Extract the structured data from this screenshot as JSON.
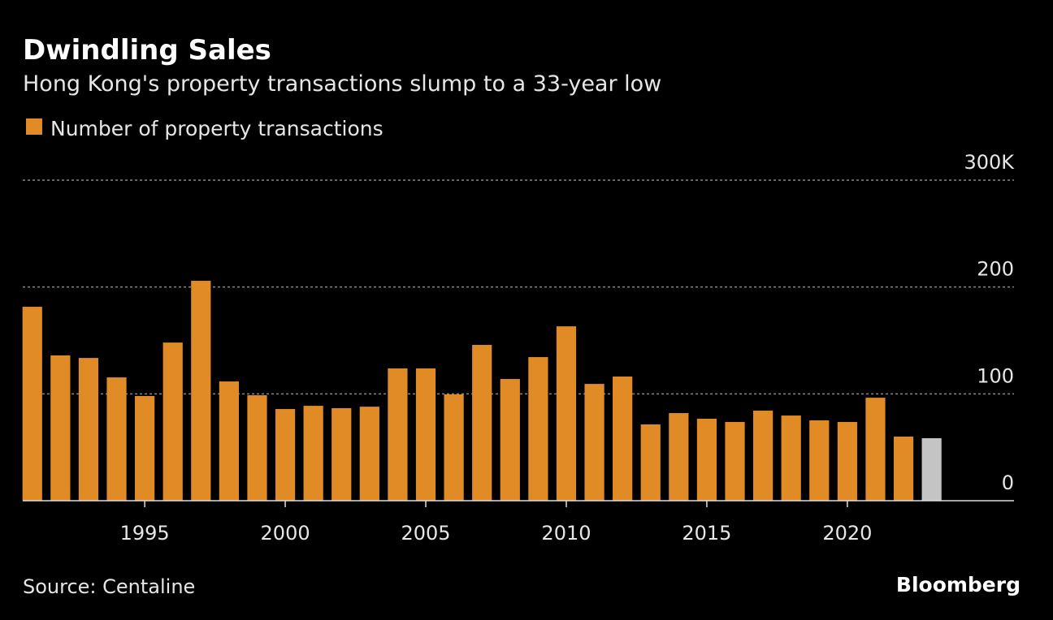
{
  "chart_data": {
    "type": "bar",
    "title": "Dwindling Sales",
    "subtitle": "Hong Kong's property transactions slump to a 33-year low",
    "source": "Source: Centaline",
    "brand": "Bloomberg",
    "x": [
      1991,
      1992,
      1993,
      1994,
      1995,
      1996,
      1997,
      1998,
      1999,
      2000,
      2001,
      2002,
      2003,
      2004,
      2005,
      2006,
      2007,
      2008,
      2009,
      2010,
      2011,
      2012,
      2013,
      2014,
      2015,
      2016,
      2017,
      2018,
      2019,
      2020,
      2021,
      2022,
      2023
    ],
    "series": [
      {
        "name": "Number of property transactions",
        "color": "#e08b26",
        "values": [
          181.5,
          136,
          133.6,
          115.4,
          98,
          148,
          205.8,
          111.6,
          98.7,
          85.8,
          88.8,
          86.6,
          88,
          123.8,
          123.8,
          99.5,
          145.8,
          113.9,
          134.4,
          163.2,
          109.3,
          116.2,
          71.4,
          82,
          76.7,
          73.7,
          84.3,
          79.7,
          75.2,
          73.7,
          96.4,
          60,
          58.5
        ],
        "colors": [
          "#e08b26",
          "#e08b26",
          "#e08b26",
          "#e08b26",
          "#e08b26",
          "#e08b26",
          "#e08b26",
          "#e08b26",
          "#e08b26",
          "#e08b26",
          "#e08b26",
          "#e08b26",
          "#e08b26",
          "#e08b26",
          "#e08b26",
          "#e08b26",
          "#e08b26",
          "#e08b26",
          "#e08b26",
          "#e08b26",
          "#e08b26",
          "#e08b26",
          "#e08b26",
          "#e08b26",
          "#e08b26",
          "#e08b26",
          "#e08b26",
          "#e08b26",
          "#e08b26",
          "#e08b26",
          "#e08b26",
          "#e08b26",
          "#c4c4c4"
        ]
      }
    ],
    "xlim": [
      1990.66,
      2025.93
    ],
    "xticks": [
      1995,
      2000,
      2005,
      2010,
      2015,
      2020
    ],
    "ylim": [
      0,
      300
    ],
    "yticks": [
      0,
      100,
      200,
      {
        "value": 300,
        "label": "300K"
      }
    ],
    "grid": true
  }
}
